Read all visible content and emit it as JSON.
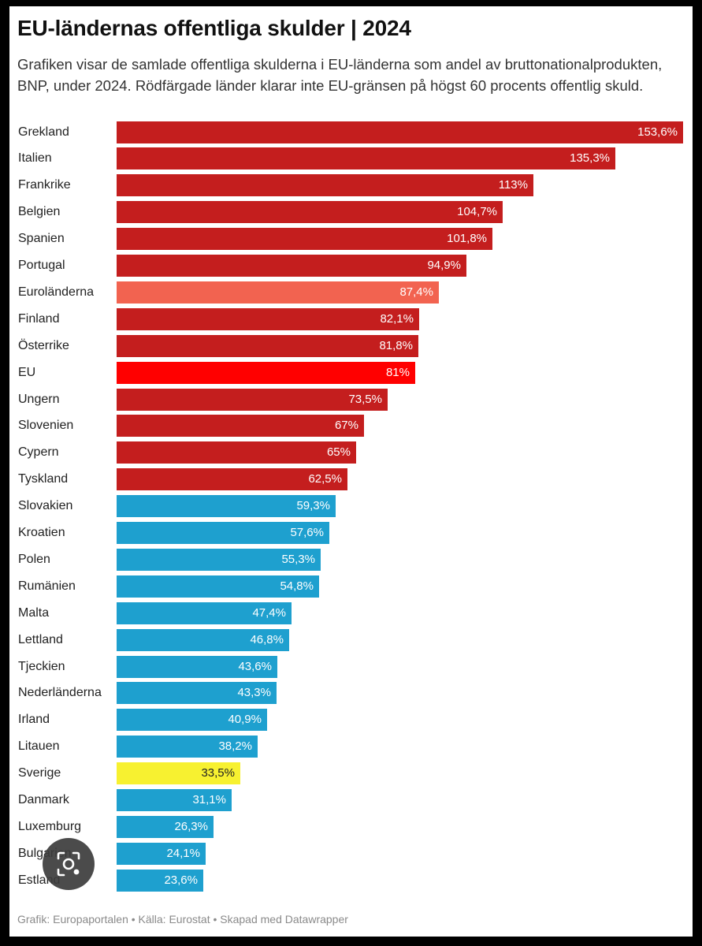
{
  "header": {
    "title": "EU-ländernas offentliga skulder | 2024",
    "subtitle": "Grafiken visar de samlade offentliga skulderna i EU-länderna som andel av bruttonationalprodukten, BNP, under 2024. Rödfärgade länder klarar inte EU-gränsen på högst 60 procents offentlig skuld."
  },
  "footer": {
    "credit": "Grafik: Europaportalen • Källa: Eurostat • Skapad med Datawrapper"
  },
  "overlay": {
    "icon": "lens-search-icon"
  },
  "colors": {
    "over_limit": "#c41e1e",
    "euro_area": "#f26350",
    "eu": "#ff0000",
    "under_limit": "#1ea0cf",
    "sweden": "#f7f130"
  },
  "chart_data": {
    "type": "bar",
    "orientation": "horizontal",
    "title": "EU-ländernas offentliga skulder | 2024",
    "xlabel": "",
    "ylabel": "",
    "xlim": [
      0,
      153.6
    ],
    "unit": "%",
    "grid": false,
    "legend": "none",
    "categories": [
      "Grekland",
      "Italien",
      "Frankrike",
      "Belgien",
      "Spanien",
      "Portugal",
      "Euroländerna",
      "Finland",
      "Österrike",
      "EU",
      "Ungern",
      "Slovenien",
      "Cypern",
      "Tyskland",
      "Slovakien",
      "Kroatien",
      "Polen",
      "Rumänien",
      "Malta",
      "Lettland",
      "Tjeckien",
      "Nederländerna",
      "Irland",
      "Litauen",
      "Sverige",
      "Danmark",
      "Luxemburg",
      "Bulgarien",
      "Estland"
    ],
    "values": [
      153.6,
      135.3,
      113,
      104.7,
      101.8,
      94.9,
      87.4,
      82.1,
      81.8,
      81,
      73.5,
      67,
      65,
      62.5,
      59.3,
      57.6,
      55.3,
      54.8,
      47.4,
      46.8,
      43.6,
      43.3,
      40.9,
      38.2,
      33.5,
      31.1,
      26.3,
      24.1,
      23.6
    ],
    "value_labels": [
      "153,6%",
      "135,3%",
      "113%",
      "104,7%",
      "101,8%",
      "94,9%",
      "87,4%",
      "82,1%",
      "81,8%",
      "81%",
      "73,5%",
      "67%",
      "65%",
      "62,5%",
      "59,3%",
      "57,6%",
      "55,3%",
      "54,8%",
      "47,4%",
      "46,8%",
      "43,6%",
      "43,3%",
      "40,9%",
      "38,2%",
      "33,5%",
      "31,1%",
      "26,3%",
      "24,1%",
      "23,6%"
    ],
    "bar_color_keys": [
      "over_limit",
      "over_limit",
      "over_limit",
      "over_limit",
      "over_limit",
      "over_limit",
      "euro_area",
      "over_limit",
      "over_limit",
      "eu",
      "over_limit",
      "over_limit",
      "over_limit",
      "over_limit",
      "under_limit",
      "under_limit",
      "under_limit",
      "under_limit",
      "under_limit",
      "under_limit",
      "under_limit",
      "under_limit",
      "under_limit",
      "under_limit",
      "sweden",
      "under_limit",
      "under_limit",
      "under_limit",
      "under_limit"
    ],
    "value_label_colors": [
      "#ffffff",
      "#ffffff",
      "#ffffff",
      "#ffffff",
      "#ffffff",
      "#ffffff",
      "#ffffff",
      "#ffffff",
      "#ffffff",
      "#ffffff",
      "#ffffff",
      "#ffffff",
      "#ffffff",
      "#ffffff",
      "#ffffff",
      "#ffffff",
      "#ffffff",
      "#ffffff",
      "#ffffff",
      "#ffffff",
      "#ffffff",
      "#ffffff",
      "#ffffff",
      "#ffffff",
      "#222222",
      "#ffffff",
      "#ffffff",
      "#ffffff",
      "#ffffff"
    ]
  }
}
